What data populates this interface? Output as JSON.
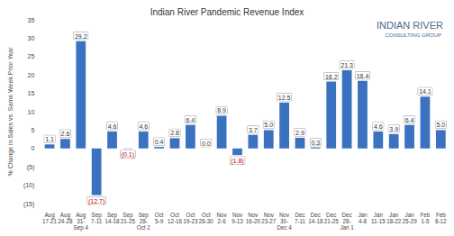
{
  "chart_data": {
    "type": "bar",
    "title": "Indian River Pandemic Revenue Index",
    "y_label": "% Change in Sales vs. Same Week Prior Year",
    "annotations": [
      "INDIAN RIVER",
      "CONSULTING GROUP"
    ],
    "categories": [
      "Aug 17-21",
      "Aug 24-28",
      "Aug 31-Sep 4",
      "Sep 7-11",
      "Sep 14-18",
      "Sep 21-25",
      "Sep 28-Oct 2",
      "Oct 5-9",
      "Oct 12-16",
      "Oct 19-23",
      "Oct 26-30",
      "Nov 2-6",
      "Nov 9-13",
      "Nov 16-20",
      "Nov 23-27",
      "Nov 30-Dec 4",
      "Dec 7-11",
      "Dec 14-18",
      "Dec 21-25",
      "Dec 28-Jan 1",
      "Jan 4-8",
      "Jan 11-15",
      "Jan 18-22",
      "Jan 25-29",
      "Feb 1-5",
      "Feb 8-12"
    ],
    "values": [
      1.1,
      2.6,
      29.2,
      -12.7,
      4.6,
      -0.1,
      4.6,
      0.4,
      2.8,
      6.4,
      0.0,
      8.9,
      -1.8,
      3.7,
      5.0,
      12.5,
      2.9,
      0.3,
      18.2,
      21.3,
      18.4,
      4.6,
      3.9,
      6.4,
      14.1,
      5.0
    ],
    "value_labels": [
      "1.1",
      "2.6",
      "29.2",
      "(12.7)",
      "4.6",
      "(0.1)",
      "4.6",
      "0.4",
      "2.8",
      "6.4",
      "0.0",
      "8.9",
      "(1.8)",
      "3.7",
      "5.0",
      "12.5",
      "2.9",
      "0.3",
      "18.2",
      "21.3",
      "18.4",
      "4.6",
      "3.9",
      "6.4",
      "14.1",
      "5.0"
    ],
    "color": "#3a72c0",
    "ylim": [
      -15,
      35
    ],
    "yticks": [
      {
        "value": -15,
        "label": "(15)"
      },
      {
        "value": -10,
        "label": "(10)"
      },
      {
        "value": -5,
        "label": "(5)"
      },
      0,
      5,
      10,
      15,
      20,
      25,
      30,
      35
    ],
    "grid": false,
    "data_labels": true
  }
}
